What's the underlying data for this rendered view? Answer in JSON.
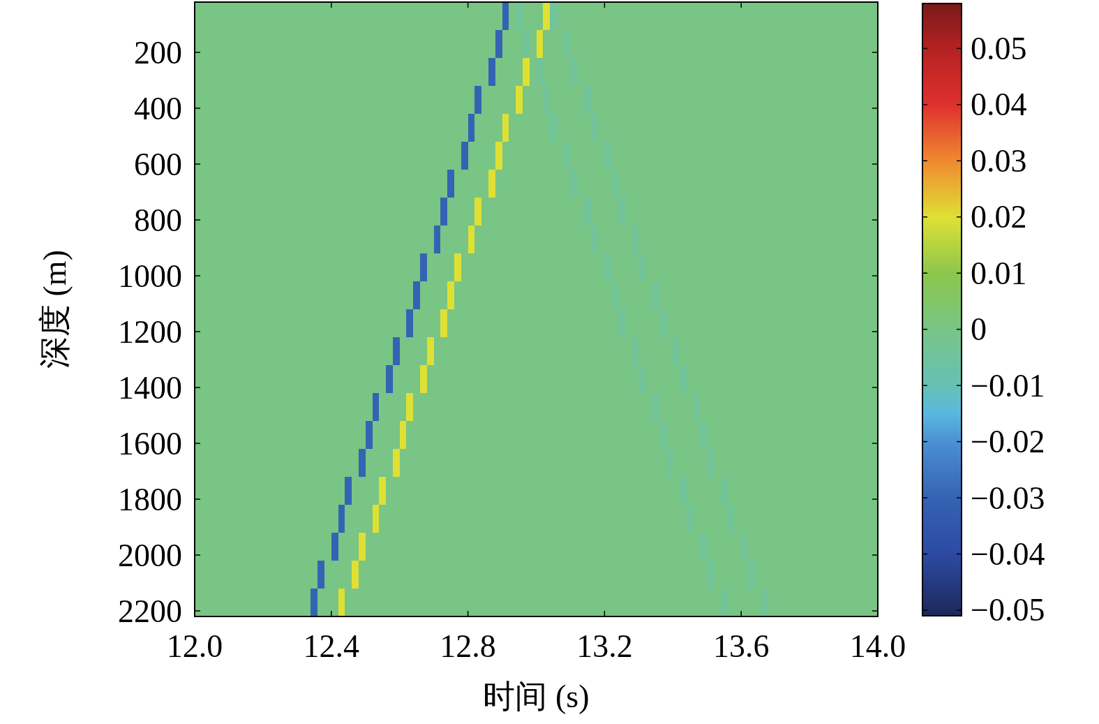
{
  "chart_data": {
    "type": "heatmap",
    "xlabel": "时间 (s)",
    "ylabel": "深度 (m)",
    "xlim": [
      12,
      14
    ],
    "ylim": [
      2220,
      20
    ],
    "xticks": [
      {
        "value": 12,
        "label": "12.0"
      },
      {
        "value": 12.4,
        "label": "12.4"
      },
      {
        "value": 12.8,
        "label": "12.8"
      },
      {
        "value": 13.2,
        "label": "13.2"
      },
      {
        "value": 13.6,
        "label": "13.6"
      },
      {
        "value": 14,
        "label": "14.0"
      }
    ],
    "yticks": [
      200,
      400,
      600,
      800,
      1000,
      1200,
      1400,
      1600,
      1800,
      2000,
      2200
    ],
    "clim": [
      -0.051,
      0.058
    ],
    "cticks": [
      {
        "value": -0.05,
        "label": "−0.05"
      },
      {
        "value": -0.04,
        "label": "−0.04"
      },
      {
        "value": -0.03,
        "label": "−0.03"
      },
      {
        "value": -0.02,
        "label": "−0.02"
      },
      {
        "value": -0.01,
        "label": "−0.01"
      },
      0,
      0.01,
      0.02,
      0.03,
      0.04,
      0.05
    ],
    "cells": [
      [
        0,
        0,
        0,
        0,
        0,
        0,
        0,
        0,
        0,
        0,
        0,
        0,
        0,
        0,
        0,
        0,
        0,
        0,
        0,
        0,
        0,
        0,
        0,
        0,
        0,
        0,
        0,
        0,
        0,
        0,
        0,
        0,
        0,
        0,
        0,
        0,
        0,
        0,
        0,
        0,
        0,
        0,
        0,
        0,
        0,
        -0.03,
        0,
        -0.004,
        0,
        0,
        0,
        0.02,
        -0.004,
        0,
        0,
        0,
        0,
        0,
        0,
        0,
        0,
        0,
        0,
        0,
        0,
        0,
        0,
        0,
        0,
        0,
        0,
        0,
        0,
        0,
        0,
        0,
        0,
        0,
        0,
        0,
        0,
        0,
        0,
        0,
        0,
        0,
        0,
        0,
        0,
        0,
        0,
        0,
        0,
        0,
        0,
        0,
        0,
        0,
        0,
        0
      ],
      [
        0,
        0,
        0,
        0,
        0,
        0,
        0,
        0,
        0,
        0,
        0,
        0,
        0,
        0,
        0,
        0,
        0,
        0,
        0,
        0,
        0,
        0,
        0,
        0,
        0,
        0,
        0,
        0,
        0,
        0,
        0,
        0,
        0,
        0,
        0,
        0,
        0,
        0,
        0,
        0,
        0,
        0,
        0,
        0,
        -0.03,
        0,
        0,
        0,
        -0.004,
        0,
        0.02,
        0,
        0,
        0,
        -0.004,
        0,
        0,
        0,
        0,
        0,
        0,
        0,
        0,
        0,
        0,
        0,
        0,
        0,
        0,
        0,
        0,
        0,
        0,
        0,
        0,
        0,
        0,
        0,
        0,
        0,
        0,
        0,
        0,
        0,
        0,
        0,
        0,
        0,
        0,
        0,
        0,
        0,
        0,
        0,
        0,
        0,
        0,
        0,
        0,
        0
      ],
      [
        0,
        0,
        0,
        0,
        0,
        0,
        0,
        0,
        0,
        0,
        0,
        0,
        0,
        0,
        0,
        0,
        0,
        0,
        0,
        0,
        0,
        0,
        0,
        0,
        0,
        0,
        0,
        0,
        0,
        0,
        0,
        0,
        0,
        0,
        0,
        0,
        0,
        0,
        0,
        0,
        0,
        0,
        0,
        -0.03,
        0,
        0,
        0,
        0,
        0.02,
        0,
        -0.004,
        0,
        0,
        0,
        0,
        -0.004,
        0,
        0,
        0,
        0,
        0,
        0,
        0,
        0,
        0,
        0,
        0,
        0,
        0,
        0,
        0,
        0,
        0,
        0,
        0,
        0,
        0,
        0,
        0,
        0,
        0,
        0,
        0,
        0,
        0,
        0,
        0,
        0,
        0,
        0,
        0,
        0,
        0,
        0,
        0,
        0,
        0,
        0,
        0,
        0
      ],
      [
        0,
        0,
        0,
        0,
        0,
        0,
        0,
        0,
        0,
        0,
        0,
        0,
        0,
        0,
        0,
        0,
        0,
        0,
        0,
        0,
        0,
        0,
        0,
        0,
        0,
        0,
        0,
        0,
        0,
        0,
        0,
        0,
        0,
        0,
        0,
        0,
        0,
        0,
        0,
        0,
        0,
        -0.03,
        0,
        0,
        0,
        0,
        0,
        0.02,
        0,
        0,
        0,
        -0.004,
        0,
        0,
        0,
        0,
        0,
        -0.004,
        0,
        0,
        0,
        0,
        0,
        0,
        0,
        0,
        0,
        0,
        0,
        0,
        0,
        0,
        0,
        0,
        0,
        0,
        0,
        0,
        0,
        0,
        0,
        0,
        0,
        0,
        0,
        0,
        0,
        0,
        0,
        0,
        0,
        0,
        0,
        0,
        0,
        0,
        0,
        0,
        0,
        0
      ],
      [
        0,
        0,
        0,
        0,
        0,
        0,
        0,
        0,
        0,
        0,
        0,
        0,
        0,
        0,
        0,
        0,
        0,
        0,
        0,
        0,
        0,
        0,
        0,
        0,
        0,
        0,
        0,
        0,
        0,
        0,
        0,
        0,
        0,
        0,
        0,
        0,
        0,
        0,
        0,
        0,
        -0.03,
        0,
        0,
        0,
        0,
        0.02,
        0,
        0,
        0,
        0,
        0,
        0,
        -0.004,
        0,
        0,
        0,
        0,
        0,
        -0.004,
        0,
        0,
        0,
        0,
        0,
        0,
        0,
        0,
        0,
        0,
        0,
        0,
        0,
        0,
        0,
        0,
        0,
        0,
        0,
        0,
        0,
        0,
        0,
        0,
        0,
        0,
        0,
        0,
        0,
        0,
        0,
        0,
        0,
        0,
        0,
        0,
        0,
        0,
        0,
        0,
        0
      ],
      [
        0,
        0,
        0,
        0,
        0,
        0,
        0,
        0,
        0,
        0,
        0,
        0,
        0,
        0,
        0,
        0,
        0,
        0,
        0,
        0,
        0,
        0,
        0,
        0,
        0,
        0,
        0,
        0,
        0,
        0,
        0,
        0,
        0,
        0,
        0,
        0,
        0,
        0,
        0,
        -0.03,
        0,
        0,
        0,
        0,
        0.02,
        0,
        0,
        0,
        0,
        0,
        0,
        0,
        0,
        0,
        -0.004,
        0,
        0,
        0,
        0,
        0,
        -0.004,
        0,
        0,
        0,
        0,
        0,
        0,
        0,
        0,
        0,
        0,
        0,
        0,
        0,
        0,
        0,
        0,
        0,
        0,
        0,
        0,
        0,
        0,
        0,
        0,
        0,
        0,
        0,
        0,
        0,
        0,
        0,
        0,
        0,
        0,
        0,
        0,
        0,
        0,
        0
      ],
      [
        0,
        0,
        0,
        0,
        0,
        0,
        0,
        0,
        0,
        0,
        0,
        0,
        0,
        0,
        0,
        0,
        0,
        0,
        0,
        0,
        0,
        0,
        0,
        0,
        0,
        0,
        0,
        0,
        0,
        0,
        0,
        0,
        0,
        0,
        0,
        0,
        0,
        -0.03,
        0,
        0,
        0,
        0,
        0,
        0.02,
        0,
        0,
        0,
        0,
        0,
        0,
        0,
        0,
        0,
        0,
        0,
        -0.004,
        0,
        0,
        0,
        0,
        0,
        -0.004,
        0,
        0,
        0,
        0,
        0,
        0,
        0,
        0,
        0,
        0,
        0,
        0,
        0,
        0,
        0,
        0,
        0,
        0,
        0,
        0,
        0,
        0,
        0,
        0,
        0,
        0,
        0,
        0,
        0,
        0,
        0,
        0,
        0,
        0,
        0,
        0,
        0,
        0
      ],
      [
        0,
        0,
        0,
        0,
        0,
        0,
        0,
        0,
        0,
        0,
        0,
        0,
        0,
        0,
        0,
        0,
        0,
        0,
        0,
        0,
        0,
        0,
        0,
        0,
        0,
        0,
        0,
        0,
        0,
        0,
        0,
        0,
        0,
        0,
        0,
        0,
        -0.03,
        0,
        0,
        0,
        0,
        0.02,
        0,
        0,
        0,
        0,
        0,
        0,
        0,
        0,
        0,
        0,
        0,
        0,
        0,
        0,
        0,
        -0.004,
        0,
        0,
        0,
        0,
        -0.004,
        0,
        0,
        0,
        0,
        0,
        0,
        0,
        0,
        0,
        0,
        0,
        0,
        0,
        0,
        0,
        0,
        0,
        0,
        0,
        0,
        0,
        0,
        0,
        0,
        0,
        0,
        0,
        0,
        0,
        0,
        0,
        0,
        0,
        0,
        0,
        0,
        0
      ],
      [
        0,
        0,
        0,
        0,
        0,
        0,
        0,
        0,
        0,
        0,
        0,
        0,
        0,
        0,
        0,
        0,
        0,
        0,
        0,
        0,
        0,
        0,
        0,
        0,
        0,
        0,
        0,
        0,
        0,
        0,
        0,
        0,
        0,
        0,
        0,
        -0.03,
        0,
        0,
        0,
        0,
        0.02,
        0,
        0,
        0,
        0,
        0,
        0,
        0,
        0,
        0,
        0,
        0,
        0,
        0,
        0,
        0,
        0,
        0,
        -0.004,
        0,
        0,
        0,
        0,
        0,
        -0.004,
        0,
        0,
        0,
        0,
        0,
        0,
        0,
        0,
        0,
        0,
        0,
        0,
        0,
        0,
        0,
        0,
        0,
        0,
        0,
        0,
        0,
        0,
        0,
        0,
        0,
        0,
        0,
        0,
        0,
        0,
        0,
        0,
        0,
        0,
        0
      ],
      [
        0,
        0,
        0,
        0,
        0,
        0,
        0,
        0,
        0,
        0,
        0,
        0,
        0,
        0,
        0,
        0,
        0,
        0,
        0,
        0,
        0,
        0,
        0,
        0,
        0,
        0,
        0,
        0,
        0,
        0,
        0,
        0,
        0,
        -0.03,
        0,
        0,
        0,
        0,
        0.02,
        0,
        0,
        0,
        0,
        0,
        0,
        0,
        0,
        0,
        0,
        0,
        0,
        0,
        0,
        0,
        0,
        0,
        0,
        0,
        0,
        0,
        -0.004,
        0,
        0,
        0,
        0,
        -0.004,
        0,
        0,
        0,
        0,
        0,
        0,
        0,
        0,
        0,
        0,
        0,
        0,
        0,
        0,
        0,
        0,
        0,
        0,
        0,
        0,
        0,
        0,
        0,
        0,
        0,
        0,
        0,
        0,
        0,
        0,
        0,
        0,
        0,
        0
      ],
      [
        0,
        0,
        0,
        0,
        0,
        0,
        0,
        0,
        0,
        0,
        0,
        0,
        0,
        0,
        0,
        0,
        0,
        0,
        0,
        0,
        0,
        0,
        0,
        0,
        0,
        0,
        0,
        0,
        0,
        0,
        0,
        0,
        -0.03,
        0,
        0,
        0,
        0,
        0.02,
        0,
        0,
        0,
        0,
        0,
        0,
        0,
        0,
        0,
        0,
        0,
        0,
        0,
        0,
        0,
        0,
        0,
        0,
        0,
        0,
        0,
        0,
        0,
        -0.004,
        0,
        0,
        0,
        0,
        0,
        -0.004,
        0,
        0,
        0,
        0,
        0,
        0,
        0,
        0,
        0,
        0,
        0,
        0,
        0,
        0,
        0,
        0,
        0,
        0,
        0,
        0,
        0,
        0,
        0,
        0,
        0,
        0,
        0,
        0,
        0,
        0,
        0,
        0
      ],
      [
        0,
        0,
        0,
        0,
        0,
        0,
        0,
        0,
        0,
        0,
        0,
        0,
        0,
        0,
        0,
        0,
        0,
        0,
        0,
        0,
        0,
        0,
        0,
        0,
        0,
        0,
        0,
        0,
        0,
        0,
        0,
        -0.03,
        0,
        0,
        0,
        0,
        0.02,
        0,
        0,
        0,
        0,
        0,
        0,
        0,
        0,
        0,
        0,
        0,
        0,
        0,
        0,
        0,
        0,
        0,
        0,
        0,
        0,
        0,
        0,
        0,
        0,
        0,
        -0.004,
        0,
        0,
        0,
        0,
        0,
        -0.004,
        0,
        0,
        0,
        0,
        0,
        0,
        0,
        0,
        0,
        0,
        0,
        0,
        0,
        0,
        0,
        0,
        0,
        0,
        0,
        0,
        0,
        0,
        0,
        0,
        0,
        0,
        0,
        0,
        0,
        0,
        0
      ],
      [
        0,
        0,
        0,
        0,
        0,
        0,
        0,
        0,
        0,
        0,
        0,
        0,
        0,
        0,
        0,
        0,
        0,
        0,
        0,
        0,
        0,
        0,
        0,
        0,
        0,
        0,
        0,
        0,
        0,
        -0.03,
        0,
        0,
        0,
        0,
        0.02,
        0,
        0,
        0,
        0,
        0,
        0,
        0,
        0,
        0,
        0,
        0,
        0,
        0,
        0,
        0,
        0,
        0,
        0,
        0,
        0,
        0,
        0,
        0,
        0,
        0,
        0,
        0,
        0,
        0,
        -0.004,
        0,
        0,
        0,
        0,
        0,
        -0.004,
        0,
        0,
        0,
        0,
        0,
        0,
        0,
        0,
        0,
        0,
        0,
        0,
        0,
        0,
        0,
        0,
        0,
        0,
        0,
        0,
        0,
        0,
        0,
        0,
        0,
        0,
        0,
        0,
        0
      ],
      [
        0,
        0,
        0,
        0,
        0,
        0,
        0,
        0,
        0,
        0,
        0,
        0,
        0,
        0,
        0,
        0,
        0,
        0,
        0,
        0,
        0,
        0,
        0,
        0,
        0,
        0,
        0,
        0,
        -0.03,
        0,
        0,
        0,
        0,
        0.02,
        0,
        0,
        0,
        0,
        0,
        0,
        0,
        0,
        0,
        0,
        0,
        0,
        0,
        0,
        0,
        0,
        0,
        0,
        0,
        0,
        0,
        0,
        0,
        0,
        0,
        0,
        0,
        0,
        0,
        0,
        0,
        -0.004,
        0,
        0,
        0,
        0,
        0,
        -0.004,
        0,
        0,
        0,
        0,
        0,
        0,
        0,
        0,
        0,
        0,
        0,
        0,
        0,
        0,
        0,
        0,
        0,
        0,
        0,
        0,
        0,
        0,
        0,
        0,
        0,
        0,
        0,
        0
      ],
      [
        0,
        0,
        0,
        0,
        0,
        0,
        0,
        0,
        0,
        0,
        0,
        0,
        0,
        0,
        0,
        0,
        0,
        0,
        0,
        0,
        0,
        0,
        0,
        0,
        0,
        0,
        -0.03,
        0,
        0,
        0,
        0,
        0.02,
        0,
        0,
        0,
        0,
        0,
        0,
        0,
        0,
        0,
        0,
        0,
        0,
        0,
        0,
        0,
        0,
        0,
        0,
        0,
        0,
        0,
        0,
        0,
        0,
        0,
        0,
        0,
        0,
        0,
        0,
        0,
        0,
        0,
        0,
        0,
        -0.004,
        0,
        0,
        0,
        0,
        0,
        -0.004,
        0,
        0,
        0,
        0,
        0,
        0,
        0,
        0,
        0,
        0,
        0,
        0,
        0,
        0,
        0,
        0,
        0,
        0,
        0,
        0,
        0,
        0,
        0,
        0,
        0,
        0
      ],
      [
        0,
        0,
        0,
        0,
        0,
        0,
        0,
        0,
        0,
        0,
        0,
        0,
        0,
        0,
        0,
        0,
        0,
        0,
        0,
        0,
        0,
        0,
        0,
        0,
        0,
        -0.03,
        0,
        0,
        0,
        0,
        0.02,
        0,
        0,
        0,
        0,
        0,
        0,
        0,
        0,
        0,
        0,
        0,
        0,
        0,
        0,
        0,
        0,
        0,
        0,
        0,
        0,
        0,
        0,
        0,
        0,
        0,
        0,
        0,
        0,
        0,
        0,
        0,
        0,
        0,
        0,
        0,
        0,
        0,
        -0.004,
        0,
        0,
        0,
        0,
        0,
        -0.004,
        0,
        0,
        0,
        0,
        0,
        0,
        0,
        0,
        0,
        0,
        0,
        0,
        0,
        0,
        0,
        0,
        0,
        0,
        0,
        0,
        0,
        0,
        0,
        0,
        0
      ],
      [
        0,
        0,
        0,
        0,
        0,
        0,
        0,
        0,
        0,
        0,
        0,
        0,
        0,
        0,
        0,
        0,
        0,
        0,
        0,
        0,
        0,
        0,
        0,
        0,
        -0.03,
        0,
        0,
        0,
        0,
        0.02,
        0,
        0,
        0,
        0,
        0,
        0,
        0,
        0,
        0,
        0,
        0,
        0,
        0,
        0,
        0,
        0,
        0,
        0,
        0,
        0,
        0,
        0,
        0,
        0,
        0,
        0,
        0,
        0,
        0,
        0,
        0,
        0,
        0,
        0,
        0,
        0,
        0,
        0,
        0,
        -0.004,
        0,
        0,
        0,
        0,
        0,
        -0.004,
        0,
        0,
        0,
        0,
        0,
        0,
        0,
        0,
        0,
        0,
        0,
        0,
        0,
        0,
        0,
        0,
        0,
        0,
        0,
        0,
        0,
        0,
        0,
        0
      ],
      [
        0,
        0,
        0,
        0,
        0,
        0,
        0,
        0,
        0,
        0,
        0,
        0,
        0,
        0,
        0,
        0,
        0,
        0,
        0,
        0,
        0,
        0,
        -0.03,
        0,
        0,
        0,
        0,
        0.02,
        0,
        0,
        0,
        0,
        0,
        0,
        0,
        0,
        0,
        0,
        0,
        0,
        0,
        0,
        0,
        0,
        0,
        0,
        0,
        0,
        0,
        0,
        0,
        0,
        0,
        0,
        0,
        0,
        0,
        0,
        0,
        0,
        0,
        0,
        0,
        0,
        0,
        0,
        0,
        0,
        0,
        0,
        0,
        -0.004,
        0,
        0,
        0,
        0,
        0,
        -0.004,
        0,
        0,
        0,
        0,
        0,
        0,
        0,
        0,
        0,
        0,
        0,
        0,
        0,
        0,
        0,
        0,
        0,
        0,
        0,
        0,
        0,
        0
      ],
      [
        0,
        0,
        0,
        0,
        0,
        0,
        0,
        0,
        0,
        0,
        0,
        0,
        0,
        0,
        0,
        0,
        0,
        0,
        0,
        0,
        0,
        -0.03,
        0,
        0,
        0,
        0,
        0.02,
        0,
        0,
        0,
        0,
        0,
        0,
        0,
        0,
        0,
        0,
        0,
        0,
        0,
        0,
        0,
        0,
        0,
        0,
        0,
        0,
        0,
        0,
        0,
        0,
        0,
        0,
        0,
        0,
        0,
        0,
        0,
        0,
        0,
        0,
        0,
        0,
        0,
        0,
        0,
        0,
        0,
        0,
        0,
        0,
        0,
        -0.004,
        0,
        0,
        0,
        0,
        0,
        -0.004,
        0,
        0,
        0,
        0,
        0,
        0,
        0,
        0,
        0,
        0,
        0,
        0,
        0,
        0,
        0,
        0,
        0,
        0,
        0,
        0,
        0
      ],
      [
        0,
        0,
        0,
        0,
        0,
        0,
        0,
        0,
        0,
        0,
        0,
        0,
        0,
        0,
        0,
        0,
        0,
        0,
        0,
        0,
        -0.03,
        0,
        0,
        0,
        0.02,
        0,
        0,
        0,
        0,
        0,
        0,
        0,
        0,
        0,
        0,
        0,
        0,
        0,
        0,
        0,
        0,
        0,
        0,
        0,
        0,
        0,
        0,
        0,
        0,
        0,
        0,
        0,
        0,
        0,
        0,
        0,
        0,
        0,
        0,
        0,
        0,
        0,
        0,
        0,
        0,
        0,
        0,
        0,
        0,
        0,
        0,
        0,
        0,
        0,
        -0.004,
        0,
        0,
        0,
        0,
        0,
        -0.004,
        0,
        0,
        0,
        0,
        0,
        0,
        0,
        0,
        0,
        0,
        0,
        0,
        0,
        0,
        0,
        0,
        0,
        0,
        0
      ],
      [
        0,
        0,
        0,
        0,
        0,
        0,
        0,
        0,
        0,
        0,
        0,
        0,
        0,
        0,
        0,
        0,
        0,
        0,
        -0.03,
        0,
        0,
        0,
        0,
        0.02,
        0,
        0,
        0,
        0,
        0,
        0,
        0,
        0,
        0,
        0,
        0,
        0,
        0,
        0,
        0,
        0,
        0,
        0,
        0,
        0,
        0,
        0,
        0,
        0,
        0,
        0,
        0,
        0,
        0,
        0,
        0,
        0,
        0,
        0,
        0,
        0,
        0,
        0,
        0,
        0,
        0,
        0,
        0,
        0,
        0,
        0,
        0,
        0,
        0,
        0,
        0,
        -0.004,
        0,
        0,
        0,
        0,
        0,
        -0.004,
        0,
        0,
        0,
        0,
        0,
        0,
        0,
        0,
        0,
        0,
        0,
        0,
        0,
        0,
        0,
        0,
        0,
        0
      ],
      [
        0,
        0,
        0,
        0,
        0,
        0,
        0,
        0,
        0,
        0,
        0,
        0,
        0,
        0,
        0,
        0,
        0,
        -0.03,
        0,
        0,
        0,
        0.02,
        0,
        0,
        0,
        0,
        0,
        0,
        0,
        0,
        0,
        0,
        0,
        0,
        0,
        0,
        0,
        0,
        0,
        0,
        0,
        0,
        0,
        0,
        0,
        0,
        0,
        0,
        0,
        0,
        0,
        0,
        0,
        0,
        0,
        0,
        0,
        0,
        0,
        0,
        0,
        0,
        0,
        0,
        0,
        0,
        0,
        0,
        0,
        0,
        0,
        0,
        0,
        0,
        0,
        0,
        0,
        -0.004,
        0,
        0,
        0,
        0,
        0,
        -0.004,
        0,
        0,
        0,
        0,
        0,
        0,
        0,
        0,
        0,
        0,
        0,
        0,
        0,
        0,
        0,
        0
      ]
    ]
  }
}
